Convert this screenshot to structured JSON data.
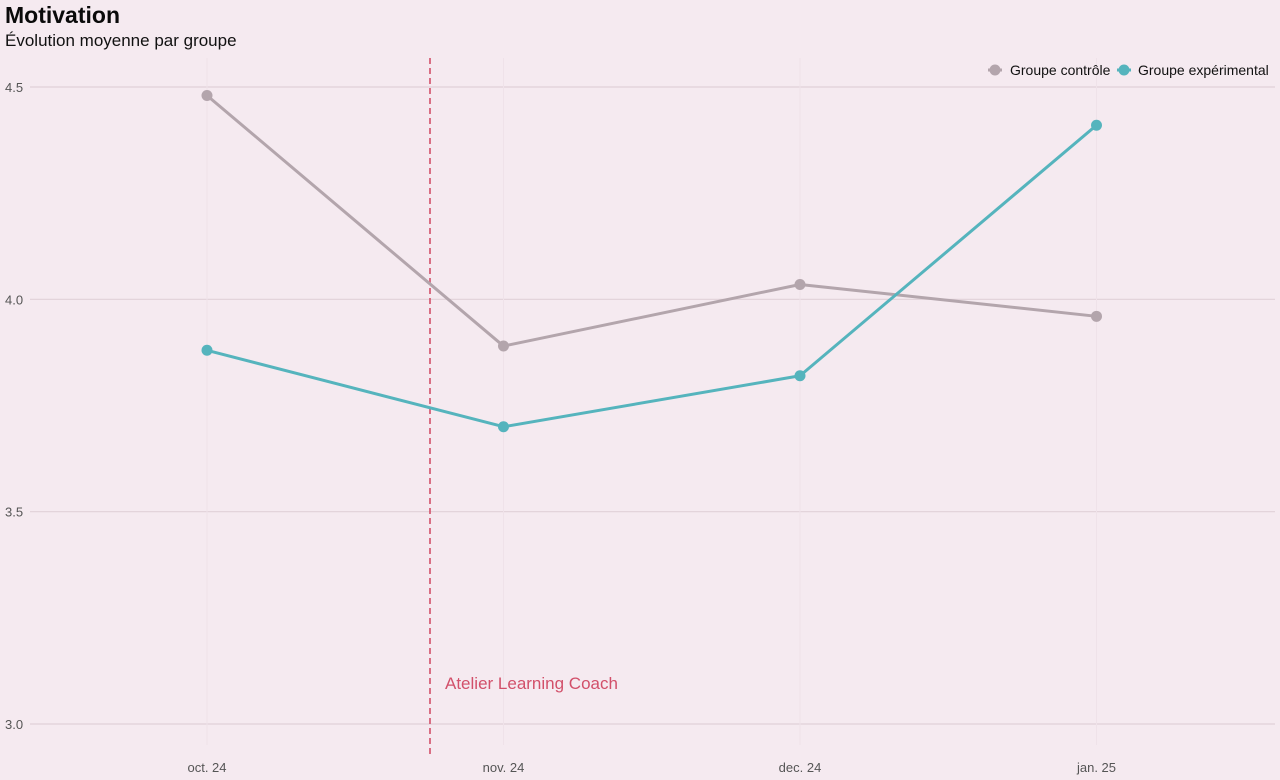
{
  "chart_data": {
    "type": "line",
    "title": "Motivation",
    "subtitle": "Évolution moyenne par groupe",
    "categories": [
      "oct. 24",
      "nov. 24",
      "dec. 24",
      "jan. 25"
    ],
    "series": [
      {
        "name": "Groupe contrôle",
        "color": "#b3a5ac",
        "values": [
          4.48,
          3.89,
          4.035,
          3.96
        ]
      },
      {
        "name": "Groupe expérimental",
        "color": "#55b4bd",
        "values": [
          3.88,
          3.7,
          3.82,
          4.41
        ]
      }
    ],
    "yticks": [
      3.0,
      3.5,
      4.0,
      4.5
    ],
    "ytick_labels": [
      "3.0",
      "3.5",
      "4.0",
      "4.5"
    ],
    "ylim": [
      3.0,
      4.5
    ],
    "legend_position": "top-right",
    "grid": true,
    "annotation": {
      "label": "Atelier Learning Coach",
      "color": "#d2506a",
      "x_position": "between oct. 24 and nov. 24"
    }
  }
}
